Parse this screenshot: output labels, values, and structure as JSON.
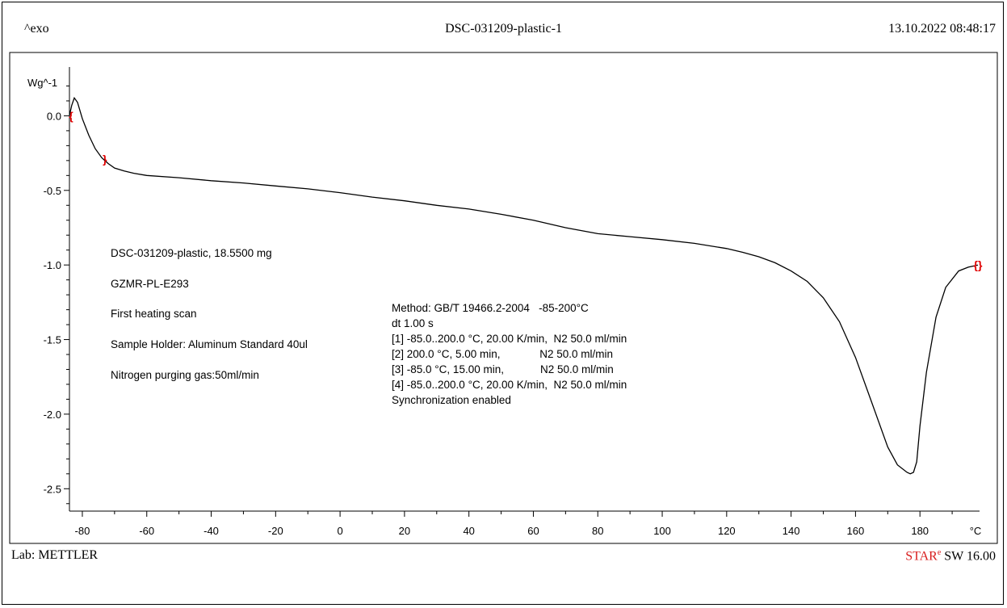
{
  "header": {
    "exo_label": "^exo",
    "title": "DSC-031209-plastic-1",
    "datetime": "13.10.2022 08:48:17"
  },
  "footer": {
    "lab": "Lab: METTLER",
    "star_red": "STAR",
    "star_sup": "e",
    "software": " SW 16.00"
  },
  "annotations": {
    "sample": [
      "DSC-031209-plastic, 18.5500 mg",
      "GZMR-PL-E293",
      "First heating scan",
      "Sample Holder: Aluminum Standard 40ul",
      "Nitrogen purging gas:50ml/min"
    ],
    "method": [
      "Method: GB/T 19466.2-2004   -85-200°C",
      "dt 1.00 s",
      "[1] -85.0..200.0 °C, 20.00 K/min,  N2 50.0 ml/min",
      "[2] 200.0 °C, 5.00 min,             N2 50.0 ml/min",
      "[3] -85.0 °C, 15.00 min,            N2 50.0 ml/min",
      "[4] -85.0..200.0 °C, 20.00 K/min,  N2 50.0 ml/min",
      "Synchronization enabled"
    ]
  },
  "colors": {
    "curve": "#000000",
    "marker": "#e00000",
    "brand": "#d81b1b"
  },
  "chart_data": {
    "type": "line",
    "ylabel": "Wg^-1",
    "xunit": "°C",
    "xlim": [
      -84,
      198.5
    ],
    "ylim": [
      -2.65,
      0.3
    ],
    "xticks": [
      -80,
      -60,
      -40,
      -20,
      0,
      20,
      40,
      60,
      80,
      100,
      120,
      140,
      160,
      180
    ],
    "yticks": [
      0.0,
      -0.5,
      -1.0,
      -1.5,
      -2.0,
      -2.5
    ],
    "ytick_labels": [
      "0.0",
      "-0.5",
      "-1.0",
      "-1.5",
      "-2.0",
      "-2.5"
    ],
    "series": [
      {
        "x": [
          -84,
          -83.3,
          -82.5,
          -81.5,
          -80,
          -78,
          -76,
          -74,
          -72,
          -70,
          -67,
          -64,
          -60,
          -50,
          -40,
          -30,
          -20,
          -10,
          0,
          10,
          20,
          30,
          40,
          50,
          60,
          70,
          80,
          90,
          100,
          110,
          120,
          125,
          130,
          135,
          140,
          145,
          150,
          155,
          160,
          165,
          170,
          173,
          176,
          177,
          178,
          179,
          180,
          182,
          185,
          188,
          192,
          195,
          198
        ],
        "y": [
          0.0,
          0.07,
          0.12,
          0.09,
          -0.02,
          -0.13,
          -0.22,
          -0.28,
          -0.32,
          -0.35,
          -0.37,
          -0.385,
          -0.4,
          -0.415,
          -0.435,
          -0.45,
          -0.47,
          -0.49,
          -0.515,
          -0.545,
          -0.57,
          -0.6,
          -0.625,
          -0.66,
          -0.7,
          -0.75,
          -0.79,
          -0.81,
          -0.83,
          -0.855,
          -0.89,
          -0.915,
          -0.945,
          -0.985,
          -1.04,
          -1.11,
          -1.22,
          -1.38,
          -1.62,
          -1.92,
          -2.22,
          -2.34,
          -2.39,
          -2.4,
          -2.39,
          -2.32,
          -2.08,
          -1.72,
          -1.35,
          -1.15,
          -1.04,
          -1.015,
          -1.0
        ]
      }
    ],
    "markers": [
      {
        "x": -83.5,
        "y": 0.0,
        "glyph": "{"
      },
      {
        "x": -73,
        "y": -0.29,
        "glyph": "}"
      },
      {
        "x": 198,
        "y": -1.0,
        "glyph": "{}"
      }
    ]
  }
}
